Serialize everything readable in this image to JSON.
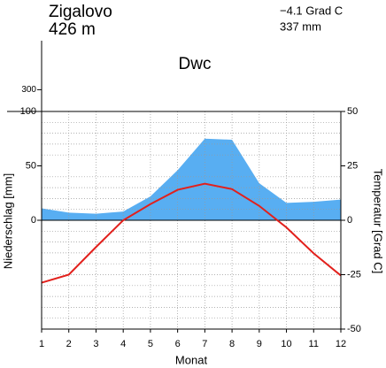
{
  "chart_data": {
    "type": "climate",
    "station": "Zigalovo",
    "elevation": "426 m",
    "mean_temperature": "−4.1 Grad C",
    "annual_precipitation": "337 mm",
    "climate_class": "Dwc",
    "xlabel": "Monat",
    "ylabel": "Niederschlag [mm]",
    "y2label": "Temperatur [Grad C]",
    "x": [
      1,
      2,
      3,
      4,
      5,
      6,
      7,
      8,
      9,
      10,
      11,
      12
    ],
    "xlim": [
      1,
      12
    ],
    "xticks": [
      1,
      2,
      3,
      4,
      5,
      6,
      7,
      8,
      9,
      10,
      11,
      12
    ],
    "ylim": [
      -100,
      750
    ],
    "yticks": [
      0,
      50,
      100,
      300
    ],
    "y_compress": {
      "above": 100,
      "factor": 0.1
    },
    "yminor": [
      -90,
      -80,
      -70,
      -60,
      -50,
      -40,
      -30,
      -20,
      -10,
      10,
      20,
      30,
      40,
      60,
      70,
      80,
      90
    ],
    "y2lim": [
      -50,
      50
    ],
    "y2ticks": [
      -50,
      -25,
      0,
      25,
      50
    ],
    "grid": true,
    "series": [
      {
        "color": "#58aef2",
        "values": [
          11,
          7,
          6,
          8,
          22,
          46,
          75,
          74,
          34,
          16,
          17,
          19
        ]
      },
      {
        "color": "#e2201c",
        "axis": "y2",
        "values": [
          -28.7,
          -25,
          -12.3,
          0,
          7.4,
          14,
          16.8,
          14.3,
          6.6,
          -3.3,
          -15.2,
          -25.4
        ]
      }
    ]
  }
}
